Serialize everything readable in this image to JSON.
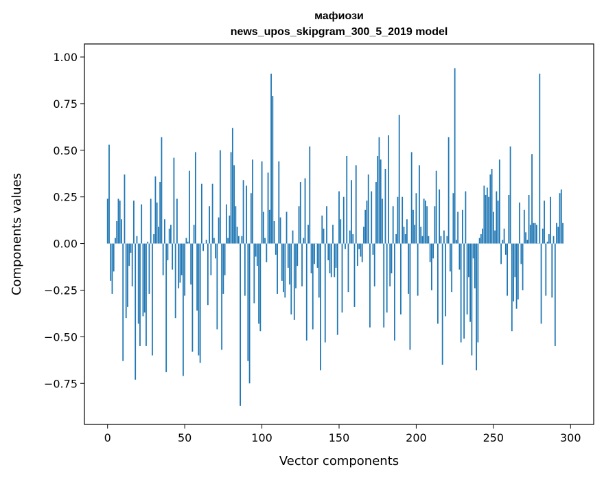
{
  "chart_data": {
    "type": "bar",
    "title": "мафиози",
    "subtitle": "news_upos_skipgram_300_5_2019 model",
    "xlabel": "Vector components",
    "ylabel": "Components values",
    "xlim": [
      -15,
      315
    ],
    "ylim": [
      -0.97,
      1.07
    ],
    "x_ticks": [
      0,
      50,
      100,
      150,
      200,
      250,
      300
    ],
    "x_tick_labels": [
      "0",
      "50",
      "100",
      "150",
      "200",
      "250",
      "300"
    ],
    "y_ticks": [
      1.0,
      0.75,
      0.5,
      0.25,
      0.0,
      -0.25,
      -0.5,
      -0.75
    ],
    "y_tick_labels": [
      "1.00",
      "0.75",
      "0.50",
      "0.25",
      "0.00",
      "−0.25",
      "−0.50",
      "−0.75"
    ],
    "bar_color": "#1f77b4",
    "grid": false,
    "values": [
      0.24,
      0.53,
      -0.2,
      -0.27,
      -0.15,
      0.03,
      0.12,
      0.24,
      0.23,
      0.13,
      -0.63,
      0.37,
      -0.4,
      -0.34,
      -0.12,
      -0.05,
      -0.23,
      0.23,
      -0.73,
      0.04,
      -0.43,
      -0.55,
      0.21,
      -0.39,
      -0.37,
      -0.55,
      0.01,
      -0.27,
      0.24,
      -0.6,
      0.05,
      0.36,
      0.22,
      0.09,
      0.33,
      0.57,
      -0.17,
      0.13,
      -0.69,
      -0.09,
      0.08,
      0.1,
      -0.14,
      0.46,
      -0.4,
      0.24,
      -0.24,
      -0.21,
      -0.17,
      -0.71,
      -0.28,
      0.03,
      0.01,
      0.39,
      -0.22,
      -0.58,
      0.1,
      0.49,
      -0.36,
      -0.6,
      -0.64,
      0.32,
      -0.04,
      0.0,
      0.02,
      -0.33,
      0.2,
      -0.17,
      0.32,
      0.03,
      -0.08,
      -0.46,
      0.14,
      0.5,
      -0.57,
      -0.27,
      -0.17,
      0.21,
      0.03,
      0.15,
      0.49,
      0.62,
      0.42,
      0.2,
      0.09,
      0.04,
      -0.87,
      0.04,
      0.34,
      -0.28,
      0.31,
      -0.63,
      -0.75,
      0.27,
      0.45,
      -0.32,
      -0.07,
      -0.12,
      -0.43,
      -0.47,
      0.44,
      0.17,
      0.03,
      -0.1,
      0.38,
      0.18,
      0.91,
      0.79,
      0.12,
      -0.06,
      -0.27,
      0.44,
      0.14,
      -0.2,
      -0.26,
      -0.29,
      0.17,
      -0.13,
      -0.22,
      -0.38,
      0.07,
      -0.41,
      -0.24,
      -0.12,
      0.2,
      0.33,
      -0.23,
      0.03,
      0.35,
      -0.52,
      0.1,
      0.52,
      -0.16,
      -0.46,
      -0.11,
      0.0,
      -0.13,
      -0.29,
      -0.68,
      0.15,
      0.08,
      -0.53,
      0.2,
      -0.09,
      -0.16,
      -0.18,
      0.1,
      -0.18,
      -0.13,
      -0.49,
      0.28,
      0.13,
      -0.37,
      0.25,
      -0.03,
      0.47,
      -0.26,
      0.07,
      0.34,
      0.05,
      -0.34,
      0.42,
      -0.12,
      -0.03,
      -0.07,
      -0.1,
      0.09,
      0.18,
      0.23,
      0.37,
      -0.45,
      0.28,
      -0.06,
      -0.23,
      0.33,
      0.47,
      0.57,
      0.45,
      0.24,
      -0.45,
      0.4,
      -0.37,
      0.58,
      -0.23,
      -0.16,
      0.2,
      -0.52,
      0.05,
      0.25,
      0.69,
      -0.38,
      0.25,
      0.09,
      0.05,
      0.13,
      -0.27,
      -0.57,
      0.49,
      0.18,
      0.1,
      0.27,
      -0.28,
      0.42,
      0.09,
      0.04,
      0.24,
      0.23,
      0.2,
      0.04,
      -0.1,
      -0.25,
      -0.08,
      0.2,
      0.39,
      -0.43,
      0.29,
      0.04,
      -0.65,
      0.07,
      -0.39,
      0.04,
      0.57,
      -0.15,
      -0.26,
      0.27,
      0.94,
      0.02,
      0.17,
      -0.14,
      -0.53,
      0.18,
      -0.51,
      0.28,
      -0.38,
      -0.18,
      -0.42,
      -0.6,
      -0.08,
      -0.24,
      -0.68,
      -0.53,
      0.03,
      0.05,
      0.08,
      0.31,
      0.26,
      0.3,
      0.25,
      0.37,
      0.4,
      0.17,
      0.07,
      0.28,
      0.23,
      0.45,
      -0.11,
      0.02,
      0.08,
      -0.06,
      -0.28,
      0.26,
      0.52,
      -0.47,
      -0.31,
      -0.18,
      -0.35,
      -0.3,
      0.22,
      -0.11,
      -0.25,
      0.18,
      0.06,
      0.02,
      0.26,
      0.1,
      0.48,
      0.11,
      0.11,
      0.1,
      0.0,
      0.91,
      -0.43,
      0.08,
      0.23,
      -0.28,
      0.01,
      0.05,
      0.25,
      -0.29,
      0.04,
      -0.55,
      0.11,
      0.09,
      0.27,
      0.29,
      0.11
    ]
  }
}
